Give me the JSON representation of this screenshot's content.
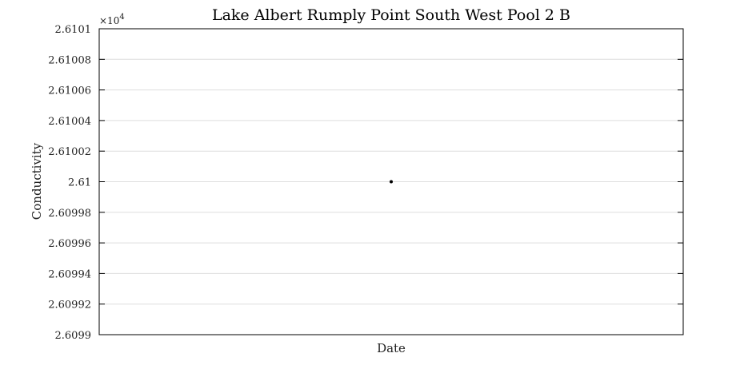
{
  "chart_data": {
    "type": "scatter",
    "title": "Lake Albert Rumply Point South West Pool 2 B",
    "xlabel": "Date",
    "ylabel": "Conductivity",
    "y_exponent_label": "×10",
    "y_exponent_power": "4",
    "ylim": [
      2.6099,
      2.6101
    ],
    "y_ticks": [
      "2.6099",
      "2.60992",
      "2.60994",
      "2.60996",
      "2.60998",
      "2.61",
      "2.61002",
      "2.61004",
      "2.61006",
      "2.61008",
      "2.6101"
    ],
    "x_ticks": [],
    "grid": "horizontal",
    "legend": "none",
    "series": [
      {
        "y": [
          2.61
        ],
        "color": "#000000"
      }
    ]
  }
}
